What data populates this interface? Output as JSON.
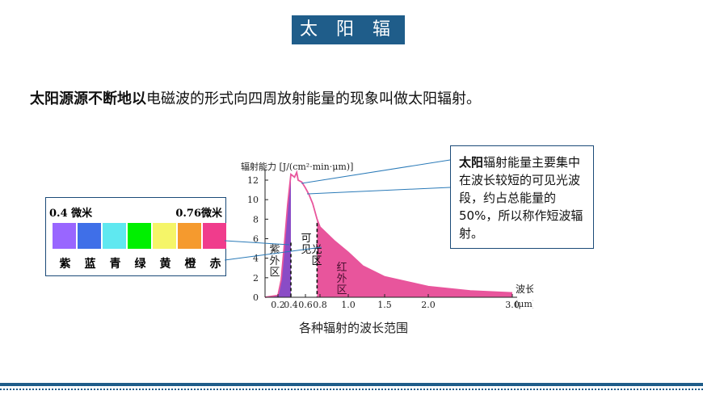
{
  "slide": {
    "title": "太 阳 辐 射",
    "lead_bold": "太阳源源不断地以",
    "lead_rest": "电磁波的形式向四周放射能量的现象叫做太阳辐射。",
    "caption": "各种辐射的波长范围"
  },
  "spectrum_box": {
    "left_label": "0.4 微米",
    "right_label": "0.76微米",
    "colors": [
      {
        "name": "紫",
        "hex": "#9966ff"
      },
      {
        "name": "蓝",
        "hex": "#3f6fe8"
      },
      {
        "name": "青",
        "hex": "#5fe8f0"
      },
      {
        "name": "绿",
        "hex": "#00f000"
      },
      {
        "name": "黄",
        "hex": "#f5f568"
      },
      {
        "name": "橙",
        "hex": "#f59a2e"
      },
      {
        "name": "赤",
        "hex": "#f03c8c"
      }
    ]
  },
  "callout": {
    "bold": "太阳",
    "text": "辐射能量主要集中在波长较短的可见光波段，约占总能量的50%，所以称作短波辐射。"
  },
  "chart_data": {
    "type": "area",
    "ylabel": "辐射能力 [J/(cm²·min·μm)]",
    "xlabel": "波长 (μm)",
    "ylim": [
      0,
      12
    ],
    "xlim": [
      0.13,
      3.0
    ],
    "y_ticks": [
      "0",
      "2",
      "4",
      "6",
      "8",
      "10",
      "12"
    ],
    "x_ticks": [
      "0.2",
      "0.4",
      "0.6",
      "0.8",
      "1.0",
      "1.5",
      "2.0",
      "3.0"
    ],
    "region_labels": [
      "紫外区",
      "可见光区",
      "红外区"
    ],
    "x_unit": "(μm)",
    "x_axis_word": "波长",
    "x": [
      0.13,
      0.2,
      0.25,
      0.3,
      0.35,
      0.4,
      0.45,
      0.48,
      0.5,
      0.55,
      0.6,
      0.65,
      0.7,
      0.76,
      0.8,
      0.9,
      1.0,
      1.2,
      1.5,
      2.0,
      2.5,
      3.0
    ],
    "y": [
      0,
      0.2,
      1.8,
      5.5,
      9.5,
      12.6,
      12.3,
      12.8,
      12.0,
      11.8,
      11.2,
      10.5,
      9.6,
      8.0,
      7.2,
      5.8,
      4.6,
      3.2,
      2.1,
      1.1,
      0.65,
      0.45
    ],
    "colors": {
      "uv": "#8a4cc6",
      "ir": "#e8559c",
      "line": "#e8559c"
    }
  }
}
